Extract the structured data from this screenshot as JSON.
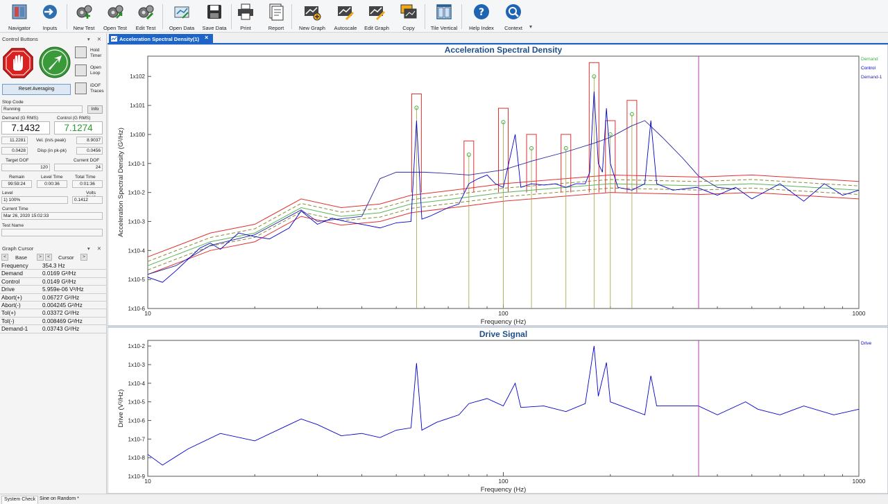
{
  "toolbar": {
    "buttons": [
      {
        "label": "Navigator",
        "icon": "navigator-icon"
      },
      {
        "label": "Inputs",
        "icon": "inputs-icon"
      },
      {
        "label": "New Test",
        "icon": "new-test-icon"
      },
      {
        "label": "Open Test",
        "icon": "open-test-icon"
      },
      {
        "label": "Edit Test",
        "icon": "edit-test-icon"
      },
      {
        "label": "Open Data",
        "icon": "open-data-icon"
      },
      {
        "label": "Save Data",
        "icon": "save-data-icon"
      },
      {
        "label": "Print",
        "icon": "print-icon"
      },
      {
        "label": "Report",
        "icon": "report-icon"
      },
      {
        "label": "New Graph",
        "icon": "new-graph-icon"
      },
      {
        "label": "Autoscale",
        "icon": "autoscale-icon"
      },
      {
        "label": "Edit Graph",
        "icon": "edit-graph-icon"
      },
      {
        "label": "Copy",
        "icon": "copy-icon"
      },
      {
        "label": "Tile Vertical",
        "icon": "tile-vertical-icon"
      },
      {
        "label": "Help Index",
        "icon": "help-index-icon"
      },
      {
        "label": "Context",
        "icon": "context-help-icon"
      }
    ]
  },
  "doc_tab": {
    "label": "Acceleration Spectral Density(1)",
    "close": "×"
  },
  "control_panel": {
    "title": "Control Buttons",
    "header_controls": "▾ ✕",
    "hold_timer": "Hold Timer",
    "open_loop": "Open Loop",
    "idof_traces": "iDOF Traces",
    "reset_averaging": "Reset Averaging",
    "stop_code_label": "Stop Code",
    "stop_code_value": "Running",
    "info": "Info",
    "demand_label": "Demand (G RMS)",
    "control_label": "Control (G RMS)",
    "demand_value": "7.1432",
    "control_value": "7.1274",
    "vel_label": "Vel. (in/s peak)",
    "vel_left": "11.2281",
    "vel_right": "8.9037",
    "disp_label": "Disp (in pk-pk)",
    "disp_left": "0.0428",
    "disp_right": "0.0456",
    "target_dof_label": "Target DOF",
    "current_dof_label": "Current DOF",
    "target_dof": "120",
    "current_dof": "24",
    "remain_label": "Remain",
    "level_time_label": "Level Time",
    "total_time_label": "Total Time",
    "remain": "99:59:24",
    "level_time": "0:00:36",
    "total_time": "0:01:36",
    "level_label": "Level",
    "volts_rms_label": "Volts RMS",
    "level": "1) 100%",
    "volts_rms": "0.1412",
    "current_time_label": "Current Time",
    "current_time": "Mar 26, 2020 15:02:33",
    "test_name_label": "Test Name",
    "test_name": ""
  },
  "graph_cursor": {
    "title": "Graph Cursor",
    "header_controls": "▾ ✕",
    "base": "Base",
    "cursor": "Cursor",
    "rows": [
      {
        "name": "Frequency",
        "value": "354.3  Hz"
      },
      {
        "name": "Demand",
        "value": "0.0169  G²/Hz"
      },
      {
        "name": "Control",
        "value": "0.0149  G²/Hz"
      },
      {
        "name": "Drive",
        "value": "5.959e-06  V²/Hz"
      },
      {
        "name": "Abort(+)",
        "value": "0.06727  G²/Hz"
      },
      {
        "name": "Abort(-)",
        "value": "0.004245  G²/Hz"
      },
      {
        "name": "Tol(+)",
        "value": "0.03372  G²/Hz"
      },
      {
        "name": "Tol(-)",
        "value": "0.008469  G²/Hz"
      },
      {
        "name": "Demand-1",
        "value": "0.03743  G²/Hz"
      }
    ]
  },
  "status_tabs": [
    "System Check",
    "Sine on Random *"
  ],
  "colors": {
    "accent": "#1c64c8",
    "title": "#1f4e8c",
    "control": "#0000cc",
    "demand": "#3cb43c",
    "abort": "#e03030",
    "tolerance": "#8a8a3a",
    "cursor": "#b43cb4"
  },
  "chart_data": [
    {
      "type": "line",
      "title": "Acceleration Spectral Density",
      "xlabel": "Frequency (Hz)",
      "ylabel": "Acceleration Spectral Density (G²/Hz)",
      "xscale": "log",
      "yscale": "log",
      "xlim": [
        10,
        1000
      ],
      "ylim": [
        1e-06,
        500.0
      ],
      "x_ticks": [
        {
          "v": 10,
          "t": "10"
        },
        {
          "v": 100,
          "t": "100"
        },
        {
          "v": 1000,
          "t": "1000"
        }
      ],
      "y_ticks": [
        {
          "v": 1e-06,
          "t": "1x10-6"
        },
        {
          "v": 1e-05,
          "t": "1x10-5"
        },
        {
          "v": 0.0001,
          "t": "1x10-4"
        },
        {
          "v": 0.001,
          "t": "1x10-3"
        },
        {
          "v": 0.01,
          "t": "1x10-2"
        },
        {
          "v": 0.1,
          "t": "1x10-1"
        },
        {
          "v": 1,
          "t": "1x100"
        },
        {
          "v": 10,
          "t": "1x101"
        },
        {
          "v": 100,
          "t": "1x102"
        }
      ],
      "cursor_x": 354.3,
      "legend": [
        "Demand",
        "Control",
        "Demand-1"
      ],
      "legend_position": "top-right",
      "series": [
        {
          "name": "Control",
          "color": "#0000cc",
          "points": [
            [
              10,
              1.2e-05
            ],
            [
              11,
              8e-06
            ],
            [
              12,
              2e-05
            ],
            [
              14,
              0.00012
            ],
            [
              15,
              0.00018
            ],
            [
              16,
              0.00011
            ],
            [
              18,
              0.0004
            ],
            [
              20,
              0.0003
            ],
            [
              22,
              0.00025
            ],
            [
              25,
              0.0006
            ],
            [
              27,
              0.0023
            ],
            [
              30,
              0.0008
            ],
            [
              33,
              0.0013
            ],
            [
              36,
              0.001
            ],
            [
              40,
              0.0008
            ],
            [
              45,
              0.0006
            ],
            [
              50,
              0.0009
            ],
            [
              55,
              0.001
            ],
            [
              57,
              3
            ],
            [
              59,
              0.0012
            ],
            [
              62,
              0.0015
            ],
            [
              70,
              0.003
            ],
            [
              75,
              0.004
            ],
            [
              80,
              0.02
            ],
            [
              85,
              0.03
            ],
            [
              90,
              0.04
            ],
            [
              95,
              0.02
            ],
            [
              100,
              0.015
            ],
            [
              108,
              1
            ],
            [
              112,
              0.015
            ],
            [
              120,
              0.02
            ],
            [
              130,
              0.018
            ],
            [
              140,
              0.02
            ],
            [
              150,
              0.015
            ],
            [
              160,
              0.02
            ],
            [
              170,
              0.02
            ],
            [
              175,
              0.05
            ],
            [
              180,
              30
            ],
            [
              185,
              0.1
            ],
            [
              190,
              0.05
            ],
            [
              195,
              8
            ],
            [
              200,
              0.1
            ],
            [
              210,
              0.015
            ],
            [
              230,
              0.012
            ],
            [
              250,
              0.02
            ],
            [
              260,
              3
            ],
            [
              270,
              0.02
            ],
            [
              300,
              0.012
            ],
            [
              350,
              0.015
            ],
            [
              400,
              0.008
            ],
            [
              450,
              0.015
            ],
            [
              500,
              0.006
            ],
            [
              600,
              0.02
            ],
            [
              700,
              0.005
            ],
            [
              800,
              0.02
            ],
            [
              900,
              0.008
            ],
            [
              1000,
              0.012
            ]
          ]
        },
        {
          "name": "Demand-1",
          "color": "#2828a0",
          "points": [
            [
              10,
              1.5e-05
            ],
            [
              12,
              3e-05
            ],
            [
              15,
              0.00015
            ],
            [
              20,
              0.00035
            ],
            [
              27,
              0.0025
            ],
            [
              30,
              0.001
            ],
            [
              40,
              0.0015
            ],
            [
              45,
              0.03
            ],
            [
              50,
              0.05
            ],
            [
              60,
              0.05
            ],
            [
              70,
              0.045
            ],
            [
              80,
              0.04
            ],
            [
              100,
              0.06
            ],
            [
              120,
              0.12
            ],
            [
              150,
              0.25
            ],
            [
              180,
              0.5
            ],
            [
              200,
              0.8
            ],
            [
              230,
              2
            ],
            [
              250,
              3
            ],
            [
              280,
              0.8
            ],
            [
              320,
              0.15
            ],
            [
              354,
              0.037
            ],
            [
              400,
              0.015
            ],
            [
              450,
              0.013
            ]
          ]
        },
        {
          "name": "Demand",
          "color": "#5ab45a",
          "points": [
            [
              10,
              3e-05
            ],
            [
              15,
              0.0002
            ],
            [
              20,
              0.0004
            ],
            [
              27,
              0.003
            ],
            [
              35,
              0.0015
            ],
            [
              45,
              0.002
            ],
            [
              55,
              0.004
            ],
            [
              80,
              0.007
            ],
            [
              100,
              0.01
            ],
            [
              200,
              0.02
            ],
            [
              354,
              0.017
            ],
            [
              500,
              0.02
            ],
            [
              1000,
              0.012
            ]
          ]
        }
      ]
    },
    {
      "type": "line",
      "title": "Drive Signal",
      "xlabel": "Frequency (Hz)",
      "ylabel": "Drive (V²/Hz)",
      "xscale": "log",
      "yscale": "log",
      "xlim": [
        10,
        1000
      ],
      "ylim": [
        1e-09,
        0.02
      ],
      "x_ticks": [
        {
          "v": 10,
          "t": "10"
        },
        {
          "v": 100,
          "t": "100"
        },
        {
          "v": 1000,
          "t": "1000"
        }
      ],
      "y_ticks": [
        {
          "v": 1e-09,
          "t": "1x10-9"
        },
        {
          "v": 1e-08,
          "t": "1x10-8"
        },
        {
          "v": 1e-07,
          "t": "1x10-7"
        },
        {
          "v": 1e-06,
          "t": "1x10-6"
        },
        {
          "v": 1e-05,
          "t": "1x10-5"
        },
        {
          "v": 0.0001,
          "t": "1x10-4"
        },
        {
          "v": 0.001,
          "t": "1x10-3"
        },
        {
          "v": 0.01,
          "t": "1x10-2"
        }
      ],
      "cursor_x": 354.3,
      "legend": [
        "Drive"
      ],
      "legend_position": "top-right",
      "series": [
        {
          "name": "Drive",
          "color": "#0000cc",
          "points": [
            [
              10,
              1.5e-08
            ],
            [
              11,
              4e-09
            ],
            [
              13,
              3e-08
            ],
            [
              16,
              2e-07
            ],
            [
              20,
              8e-08
            ],
            [
              25,
              6e-07
            ],
            [
              27,
              1.2e-06
            ],
            [
              30,
              6e-07
            ],
            [
              35,
              1.5e-07
            ],
            [
              40,
              2e-07
            ],
            [
              45,
              1.2e-07
            ],
            [
              50,
              3e-07
            ],
            [
              55,
              4e-07
            ],
            [
              57,
              0.0012
            ],
            [
              59,
              3e-07
            ],
            [
              65,
              8e-07
            ],
            [
              75,
              2e-06
            ],
            [
              80,
              8e-06
            ],
            [
              90,
              1.5e-05
            ],
            [
              100,
              6e-06
            ],
            [
              108,
              0.0001
            ],
            [
              112,
              5e-06
            ],
            [
              130,
              6e-06
            ],
            [
              150,
              3e-06
            ],
            [
              170,
              8e-06
            ],
            [
              180,
              0.01
            ],
            [
              185,
              2e-05
            ],
            [
              195,
              0.0013
            ],
            [
              200,
              1e-05
            ],
            [
              250,
              2e-06
            ],
            [
              260,
              0.00025
            ],
            [
              270,
              6e-06
            ],
            [
              354,
              6e-06
            ],
            [
              400,
              2e-06
            ],
            [
              480,
              1e-05
            ],
            [
              520,
              4e-06
            ],
            [
              600,
              2e-06
            ],
            [
              700,
              6e-06
            ],
            [
              850,
              2e-06
            ],
            [
              1000,
              4e-06
            ]
          ]
        }
      ]
    }
  ]
}
